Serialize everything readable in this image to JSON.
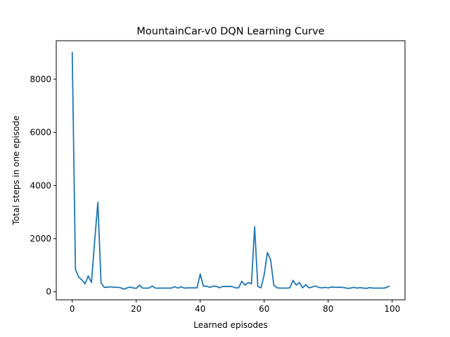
{
  "chart_data": {
    "type": "line",
    "title": "MountainCar-v0 DQN Learning Curve",
    "xlabel": "Learned episodes",
    "ylabel": "Total steps in one episode",
    "xlim": [
      -5,
      104
    ],
    "ylim": [
      -300,
      9450
    ],
    "xticks": [
      0,
      20,
      40,
      60,
      80,
      100
    ],
    "yticks": [
      0,
      2000,
      4000,
      6000,
      8000
    ],
    "grid": false,
    "legend": "none",
    "colors": {
      "line": "#1f77b4"
    },
    "series": [
      {
        "x": [
          0,
          1,
          2,
          3,
          4,
          5,
          6,
          7,
          8,
          9,
          10,
          11,
          12,
          13,
          14,
          15,
          16,
          17,
          18,
          19,
          20,
          21,
          22,
          23,
          24,
          25,
          26,
          27,
          28,
          29,
          30,
          31,
          32,
          33,
          34,
          35,
          36,
          37,
          38,
          39,
          40,
          41,
          42,
          43,
          44,
          45,
          46,
          47,
          48,
          49,
          50,
          51,
          52,
          53,
          54,
          55,
          56,
          57,
          58,
          59,
          60,
          61,
          62,
          63,
          64,
          65,
          66,
          67,
          68,
          69,
          70,
          71,
          72,
          73,
          74,
          75,
          76,
          77,
          78,
          79,
          80,
          81,
          82,
          83,
          84,
          85,
          86,
          87,
          88,
          89,
          90,
          91,
          92,
          93,
          94,
          95,
          96,
          97,
          98,
          99
        ],
        "values": [
          9000,
          850,
          550,
          450,
          300,
          600,
          350,
          1900,
          3370,
          340,
          170,
          170,
          190,
          170,
          170,
          160,
          100,
          140,
          180,
          150,
          130,
          250,
          140,
          140,
          140,
          220,
          140,
          140,
          140,
          140,
          140,
          140,
          190,
          140,
          190,
          140,
          150,
          150,
          150,
          150,
          670,
          210,
          210,
          170,
          210,
          210,
          150,
          200,
          200,
          200,
          200,
          150,
          150,
          400,
          250,
          350,
          300,
          2450,
          200,
          150,
          650,
          1480,
          1200,
          250,
          150,
          140,
          140,
          140,
          150,
          430,
          250,
          350,
          150,
          270,
          150,
          180,
          220,
          170,
          150,
          170,
          150,
          180,
          170,
          170,
          170,
          160,
          130,
          140,
          170,
          140,
          160,
          140,
          130,
          160,
          140,
          140,
          140,
          140,
          150,
          210
        ]
      }
    ]
  }
}
